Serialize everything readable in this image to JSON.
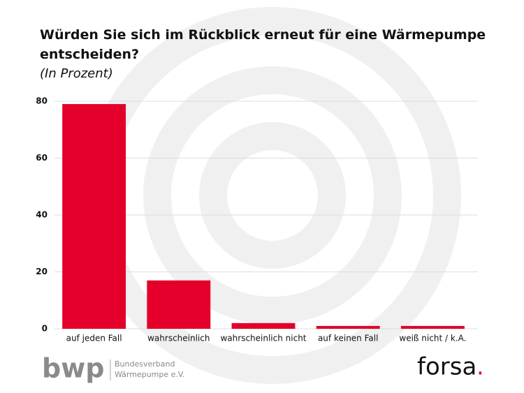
{
  "chart_data": {
    "type": "bar",
    "title": "Würden Sie sich im Rückblick erneut für eine Wärmepumpe entscheiden?",
    "subtitle": "(In Prozent)",
    "categories": [
      "auf jeden Fall",
      "wahrscheinlich",
      "wahrscheinlich nicht",
      "auf keinen Fall",
      "weiß nicht / k.A."
    ],
    "values": [
      79,
      17,
      2,
      1,
      1
    ],
    "color": "#e4002b",
    "ylim": [
      0,
      80
    ],
    "yticks": [
      0,
      20,
      40,
      60,
      80
    ],
    "grid": true
  },
  "logos": {
    "bwp": {
      "mark": "bwp",
      "line1": "Bundesverband",
      "line2": "Wärmepumpe e.V."
    },
    "forsa": {
      "text": "forsa",
      "dot": "."
    }
  }
}
